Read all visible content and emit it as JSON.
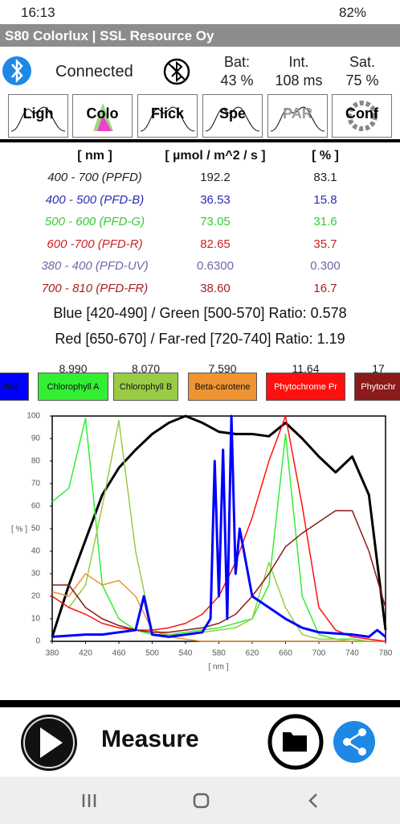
{
  "status_bar": {
    "time": "16:13",
    "battery": "82%"
  },
  "app_bar": {
    "title": "S80 Colorlux | SSL Resource Oy"
  },
  "device": {
    "status": "Connected",
    "stats": [
      {
        "label": "Bat:",
        "value": "43 %"
      },
      {
        "label": "Int.",
        "value": "108 ms"
      },
      {
        "label": "Sat.",
        "value": "75 %"
      }
    ]
  },
  "tabs": [
    "Ligh",
    "Colo",
    "Flick",
    "Spe",
    "PAR",
    "Conf"
  ],
  "table": {
    "header": [
      "[ nm ]",
      "[ µmol / m^2 / s ]",
      "[ % ]"
    ],
    "rows": [
      {
        "cells": [
          "400 - 700 (PPFD)",
          "192.2",
          "83.1"
        ],
        "color": "#222222"
      },
      {
        "cells": [
          "400 - 500 (PFD-B)",
          "36.53",
          "15.8"
        ],
        "color": "#2a2ab8"
      },
      {
        "cells": [
          "500 - 600 (PFD-G)",
          "73.05",
          "31.6"
        ],
        "color": "#33cc33"
      },
      {
        "cells": [
          "600 -700 (PFD-R)",
          "82.65",
          "35.7"
        ],
        "color": "#cc2222"
      },
      {
        "cells": [
          "380 - 400 (PFD-UV)",
          "0.6300",
          "0.300"
        ],
        "color": "#6a6aa8"
      },
      {
        "cells": [
          "700 - 810 (PFD-FR)",
          "38.60",
          "16.7"
        ],
        "color": "#a82020"
      }
    ]
  },
  "ratios": [
    "Blue [420-490] / Green [500-570] Ratio: 0.578",
    "Red [650-670] / Far-red [720-740] Ratio: 1.19"
  ],
  "pigments": [
    {
      "name": "Ref",
      "color": "#0000ff"
    },
    {
      "name": "Chlorophyll A",
      "value": "8.990",
      "color": "#33ee33"
    },
    {
      "name": "Chlorophyll B",
      "value": "8.070",
      "color": "#99cc44"
    },
    {
      "name": "Beta-carotene",
      "value": "7.590",
      "color": "#ee9433"
    },
    {
      "name": "Phytochrome Pr",
      "value": "11.64",
      "color": "#ff1010"
    },
    {
      "name": "Phytochr",
      "value": "17",
      "color": "#8b1a1a"
    }
  ],
  "spectrum": {
    "type": "line",
    "x_label": "[ nm ]",
    "y_label": "[ % ]",
    "xlim": [
      380,
      780
    ],
    "ylim": [
      0,
      100
    ],
    "xticks": [
      380,
      420,
      460,
      500,
      540,
      580,
      620,
      660,
      700,
      740,
      780
    ],
    "yticks": [
      0,
      10,
      20,
      30,
      40,
      50,
      60,
      70,
      80,
      90,
      100
    ],
    "series": [
      {
        "color": "#000000",
        "x": [
          380,
          400,
          420,
          440,
          460,
          480,
          500,
          520,
          540,
          560,
          580,
          600,
          620,
          640,
          660,
          680,
          700,
          720,
          740,
          760,
          780
        ],
        "values": [
          2,
          25,
          45,
          65,
          77,
          85,
          92,
          97,
          100,
          97,
          93,
          92,
          92,
          91,
          97,
          90,
          82,
          75,
          82,
          65,
          5
        ]
      },
      {
        "color": "#33ee33",
        "x": [
          380,
          400,
          420,
          440,
          460,
          480,
          500,
          520,
          540,
          560,
          580,
          600,
          620,
          640,
          660,
          680,
          700,
          720,
          740,
          760,
          780
        ],
        "values": [
          62,
          68,
          99,
          25,
          10,
          5,
          3,
          3,
          4,
          5,
          6,
          8,
          10,
          25,
          92,
          20,
          3,
          1,
          1,
          0,
          0
        ]
      },
      {
        "color": "#99cc44",
        "x": [
          380,
          400,
          420,
          440,
          460,
          480,
          500,
          520,
          540,
          560,
          580,
          600,
          620,
          640,
          660,
          680,
          700,
          720,
          740,
          760,
          780
        ],
        "values": [
          20,
          15,
          25,
          60,
          98,
          40,
          5,
          3,
          3,
          4,
          5,
          6,
          10,
          35,
          15,
          3,
          1,
          1,
          0,
          0,
          0
        ]
      },
      {
        "color": "#ee9433",
        "x": [
          380,
          400,
          420,
          440,
          460,
          480,
          500,
          520,
          540,
          560,
          580,
          600,
          620,
          640,
          660,
          680,
          700,
          720,
          740,
          760,
          780
        ],
        "values": [
          22,
          20,
          30,
          25,
          27,
          20,
          5,
          2,
          1,
          0,
          0,
          0,
          0,
          0,
          0,
          0,
          0,
          0,
          0,
          0,
          0
        ]
      },
      {
        "color": "#ff1010",
        "x": [
          380,
          400,
          420,
          440,
          460,
          480,
          500,
          520,
          540,
          560,
          580,
          600,
          620,
          640,
          660,
          680,
          700,
          720,
          740,
          760,
          780
        ],
        "values": [
          20,
          15,
          12,
          8,
          6,
          5,
          5,
          6,
          8,
          12,
          20,
          35,
          55,
          80,
          100,
          60,
          15,
          5,
          2,
          1,
          0
        ]
      },
      {
        "color": "#8b1a1a",
        "x": [
          380,
          400,
          420,
          440,
          460,
          480,
          500,
          520,
          540,
          560,
          580,
          600,
          620,
          640,
          660,
          680,
          700,
          720,
          740,
          760,
          780
        ],
        "values": [
          25,
          25,
          15,
          10,
          7,
          5,
          4,
          4,
          5,
          6,
          8,
          12,
          20,
          30,
          42,
          48,
          53,
          58,
          58,
          40,
          15
        ]
      },
      {
        "color": "#0000ff",
        "x": [
          380,
          420,
          440,
          460,
          480,
          490,
          500,
          520,
          540,
          560,
          570,
          575,
          580,
          585,
          590,
          595,
          600,
          605,
          620,
          640,
          660,
          680,
          700,
          740,
          760,
          770,
          780
        ],
        "values": [
          2,
          3,
          3,
          4,
          5,
          20,
          3,
          2,
          3,
          4,
          10,
          80,
          20,
          85,
          10,
          100,
          30,
          50,
          20,
          15,
          10,
          6,
          4,
          3,
          2,
          5,
          2
        ]
      }
    ]
  },
  "footer": {
    "button": "Measure"
  }
}
